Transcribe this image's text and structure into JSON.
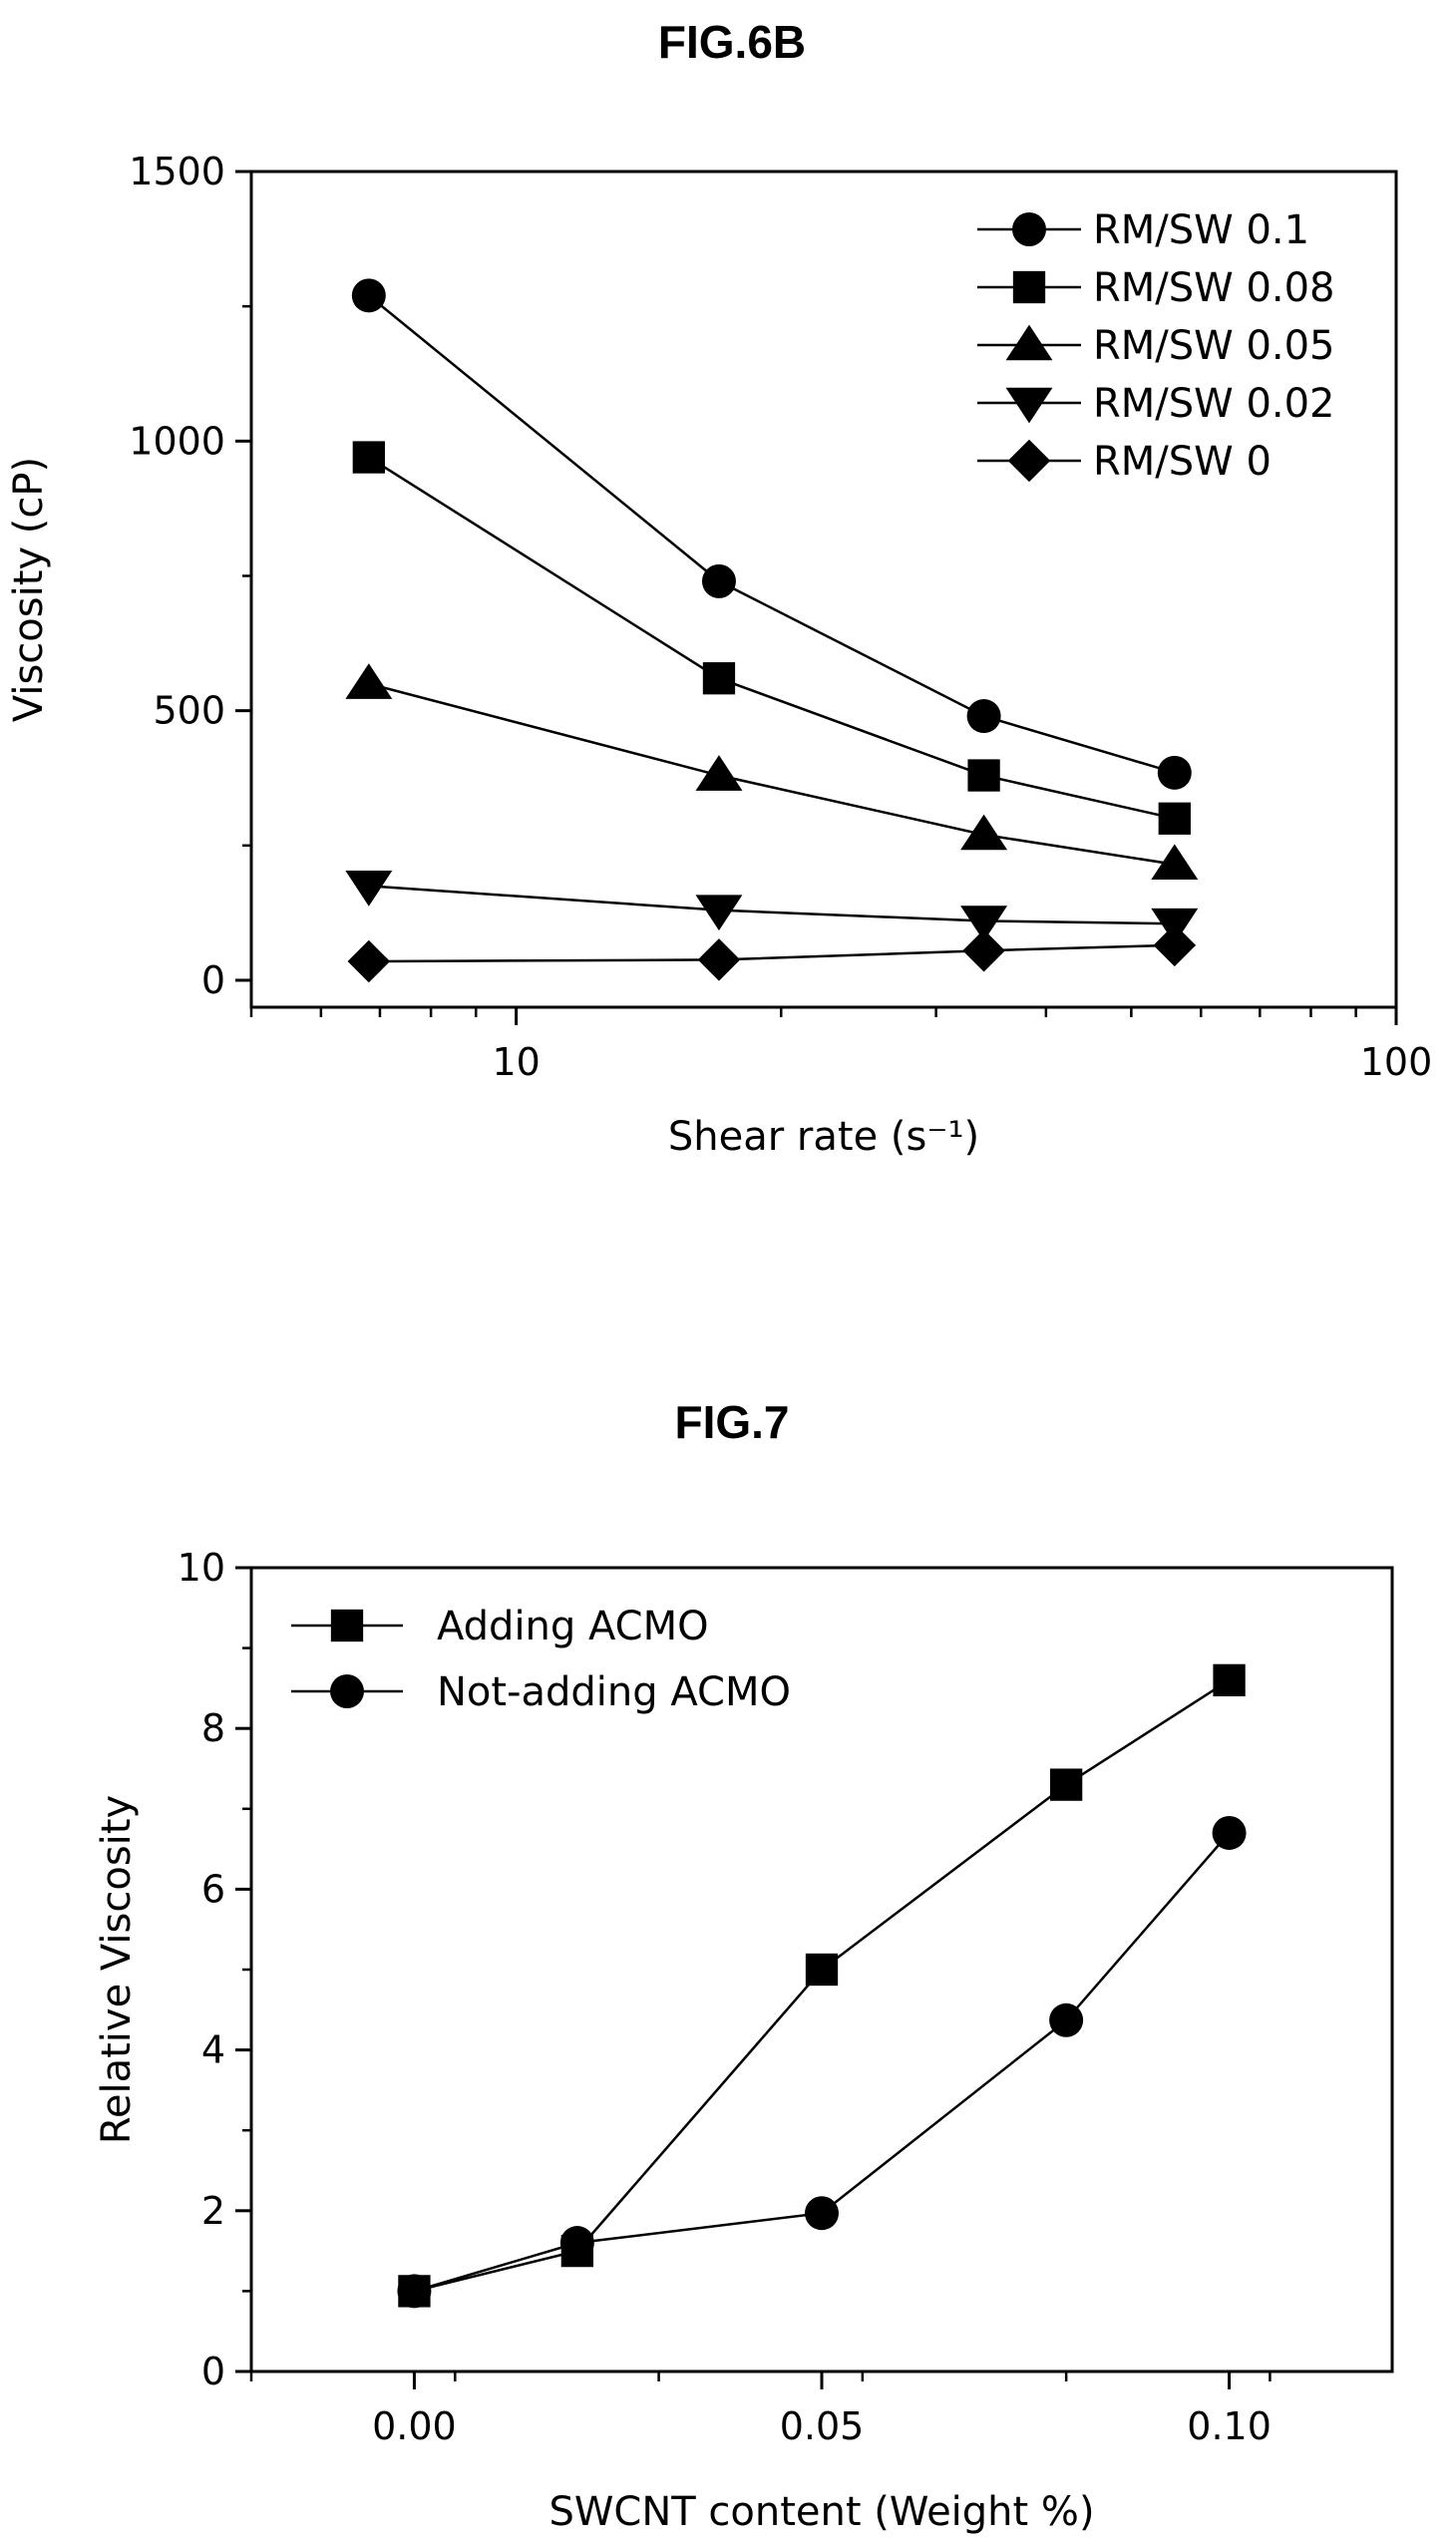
{
  "figures": [
    {
      "title": "FIG.6B"
    },
    {
      "title": "FIG.7"
    }
  ],
  "chart_data": [
    {
      "type": "line",
      "title": "FIG.6B",
      "xlabel": "Shear rate (s⁻¹)",
      "ylabel": "Viscosity (cP)",
      "xscale": "log",
      "xlim": [
        5,
        100
      ],
      "ylim": [
        -50,
        1500
      ],
      "x_ticks": [
        10,
        100
      ],
      "x_tick_labels": [
        "10",
        "100"
      ],
      "y_ticks": [
        0,
        500,
        1000,
        1500
      ],
      "y_tick_labels": [
        "0",
        "500",
        "1000",
        "1500"
      ],
      "legend_position": "top-right",
      "grid": false,
      "x": [
        6.8,
        17,
        34,
        56
      ],
      "series": [
        {
          "name": "RM/SW 0.1",
          "marker": "circle",
          "values": [
            1270,
            740,
            490,
            385
          ]
        },
        {
          "name": "RM/SW 0.08",
          "marker": "square",
          "values": [
            970,
            560,
            380,
            300
          ]
        },
        {
          "name": "RM/SW 0.05",
          "marker": "triangle-up",
          "values": [
            550,
            380,
            270,
            215
          ]
        },
        {
          "name": "RM/SW 0.02",
          "marker": "triangle-down",
          "values": [
            175,
            130,
            110,
            105
          ]
        },
        {
          "name": "RM/SW 0",
          "marker": "diamond",
          "values": [
            35,
            38,
            55,
            65
          ]
        }
      ]
    },
    {
      "type": "line",
      "title": "FIG.7",
      "xlabel": "SWCNT content (Weight %)",
      "ylabel": "Relative Viscosity",
      "xlim": [
        -0.02,
        0.12
      ],
      "ylim": [
        0,
        10
      ],
      "x_ticks": [
        0,
        0.05,
        0.1
      ],
      "x_tick_labels": [
        "0.00",
        "0.05",
        "0.10"
      ],
      "y_ticks": [
        0,
        2,
        4,
        6,
        8,
        10
      ],
      "y_tick_labels": [
        "0",
        "2",
        "4",
        "6",
        "8",
        "10"
      ],
      "legend_position": "top-left",
      "grid": false,
      "x": [
        0,
        0.02,
        0.05,
        0.08,
        0.1
      ],
      "series": [
        {
          "name": "Adding ACMO",
          "marker": "square",
          "values": [
            1.0,
            1.5,
            5.0,
            7.3,
            8.6
          ]
        },
        {
          "name": "Not-adding ACMO",
          "marker": "circle",
          "values": [
            1.0,
            1.6,
            1.97,
            4.37,
            6.7
          ]
        }
      ]
    }
  ]
}
